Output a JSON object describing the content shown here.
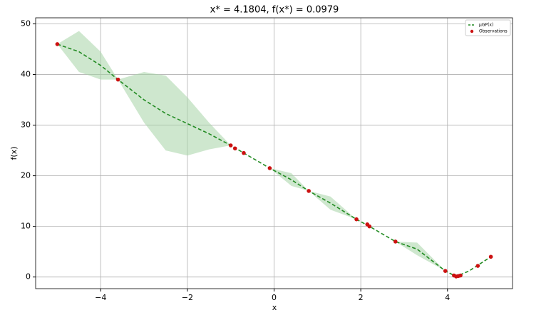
{
  "chart_data": {
    "type": "line",
    "title": "x* = 4.1804, f(x*) = 0.0979",
    "xlabel": "x",
    "ylabel": "f(x)",
    "xlim": [
      -5.5,
      5.5
    ],
    "ylim": [
      -2.3,
      51.2
    ],
    "xticks": [
      {
        "value": -4,
        "label": "−4"
      },
      {
        "value": -2,
        "label": "−2"
      },
      0,
      2,
      4
    ],
    "yticks": [
      0,
      10,
      20,
      30,
      40,
      50
    ],
    "grid": true,
    "legend": "upper right",
    "x": [
      -5,
      -4.5,
      -4,
      -3.6,
      -3,
      -2.5,
      -2,
      -1.5,
      -1,
      -0.7,
      -0.1,
      0.4,
      0.8,
      1.3,
      1.9,
      2.2,
      2.8,
      3.3,
      3.95,
      4.2,
      4.5,
      5
    ],
    "series": [
      {
        "name": "μGP(x)",
        "color": "#228b22",
        "values": [
          46,
          44.5,
          41.8,
          39,
          35,
          32.3,
          30.3,
          28.3,
          26,
          24.5,
          21.5,
          19.2,
          17,
          14.6,
          11.4,
          10,
          7,
          5.5,
          1.2,
          0.1,
          1.2,
          4
        ]
      }
    ],
    "band": {
      "color": "#a6d3a6",
      "upper": [
        46,
        48.6,
        44.5,
        39,
        40.5,
        39.8,
        35.5,
        30.5,
        26,
        24.5,
        21.5,
        20.5,
        17,
        15.9,
        11.4,
        10,
        7,
        6.8,
        1.2,
        0.1,
        1.2,
        4
      ],
      "lower": [
        46,
        40.5,
        39,
        39,
        30.5,
        25,
        24,
        25.2,
        26,
        24.5,
        21.5,
        18,
        17,
        13.3,
        11.4,
        10,
        7,
        4.3,
        1.2,
        0.1,
        1.2,
        4
      ]
    },
    "observations": {
      "name": "Observations",
      "color": "#cc1111",
      "x": [
        -5,
        -3.6,
        -1,
        -0.9,
        -0.7,
        -0.1,
        0.8,
        1.9,
        2.15,
        2.2,
        2.8,
        3.95,
        4.15,
        4.2,
        4.25,
        4.3,
        4.7,
        5
      ],
      "values": [
        46,
        39,
        26,
        25.4,
        24.5,
        21.5,
        17,
        11.4,
        10.4,
        10,
        7,
        1.2,
        0.3,
        0.1,
        0.2,
        0.3,
        2.2,
        4
      ]
    }
  }
}
